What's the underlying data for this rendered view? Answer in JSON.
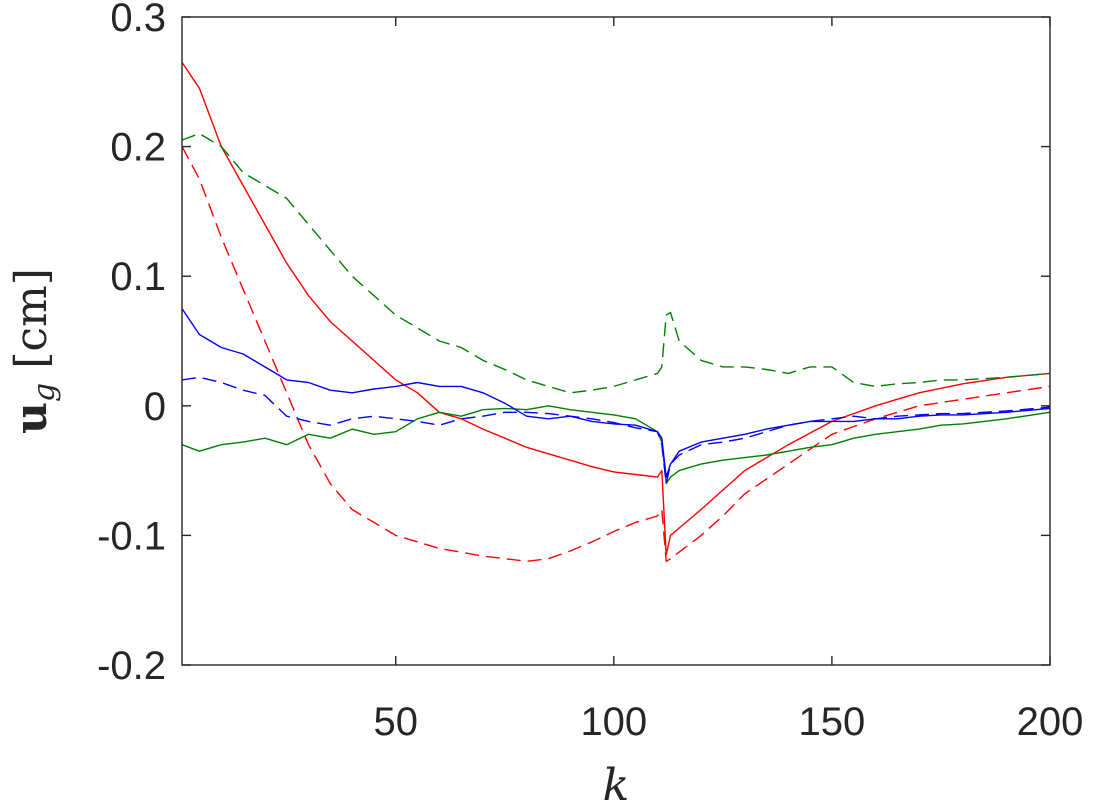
{
  "chart_data": {
    "type": "line",
    "title": "",
    "xlabel": "k",
    "ylabel_main": "u",
    "ylabel_sub": "g",
    "ylabel_unit": "[cm]",
    "xlim": [
      1,
      200
    ],
    "ylim": [
      -0.2,
      0.3
    ],
    "x_ticks": [
      50,
      100,
      150,
      200
    ],
    "x_tick_labels": [
      "50",
      "100",
      "150",
      "200"
    ],
    "y_ticks": [
      -0.2,
      -0.1,
      0,
      0.1,
      0.2,
      0.3
    ],
    "y_tick_labels": [
      "-0.2",
      "-0.1",
      "0",
      "0.1",
      "0.2",
      "0.3"
    ],
    "grid": false,
    "box": true,
    "series": [
      {
        "color": "#ff0000",
        "dash": "solid",
        "points": [
          [
            1,
            0.265
          ],
          [
            5,
            0.245
          ],
          [
            10,
            0.2
          ],
          [
            15,
            0.17
          ],
          [
            20,
            0.14
          ],
          [
            25,
            0.11
          ],
          [
            30,
            0.085
          ],
          [
            35,
            0.065
          ],
          [
            40,
            0.05
          ],
          [
            45,
            0.035
          ],
          [
            50,
            0.02
          ],
          [
            55,
            0.01
          ],
          [
            60,
            -0.005
          ],
          [
            65,
            -0.01
          ],
          [
            70,
            -0.018
          ],
          [
            75,
            -0.025
          ],
          [
            80,
            -0.032
          ],
          [
            85,
            -0.037
          ],
          [
            90,
            -0.042
          ],
          [
            95,
            -0.047
          ],
          [
            100,
            -0.051
          ],
          [
            105,
            -0.053
          ],
          [
            110,
            -0.055
          ],
          [
            111,
            -0.05
          ],
          [
            112,
            -0.115
          ],
          [
            113,
            -0.1
          ],
          [
            120,
            -0.08
          ],
          [
            125,
            -0.065
          ],
          [
            130,
            -0.05
          ],
          [
            140,
            -0.03
          ],
          [
            150,
            -0.012
          ],
          [
            160,
            0
          ],
          [
            170,
            0.01
          ],
          [
            180,
            0.017
          ],
          [
            190,
            0.022
          ],
          [
            200,
            0.025
          ]
        ]
      },
      {
        "color": "#ff0000",
        "dash": "dashed",
        "points": [
          [
            1,
            0.2
          ],
          [
            5,
            0.175
          ],
          [
            10,
            0.13
          ],
          [
            15,
            0.09
          ],
          [
            20,
            0.05
          ],
          [
            25,
            0.01
          ],
          [
            30,
            -0.03
          ],
          [
            35,
            -0.06
          ],
          [
            40,
            -0.08
          ],
          [
            45,
            -0.09
          ],
          [
            50,
            -0.1
          ],
          [
            55,
            -0.105
          ],
          [
            60,
            -0.11
          ],
          [
            65,
            -0.113
          ],
          [
            70,
            -0.116
          ],
          [
            75,
            -0.118
          ],
          [
            80,
            -0.12
          ],
          [
            85,
            -0.118
          ],
          [
            90,
            -0.112
          ],
          [
            95,
            -0.105
          ],
          [
            100,
            -0.097
          ],
          [
            105,
            -0.09
          ],
          [
            110,
            -0.085
          ],
          [
            111,
            -0.08
          ],
          [
            112,
            -0.12
          ],
          [
            113,
            -0.118
          ],
          [
            120,
            -0.1
          ],
          [
            125,
            -0.085
          ],
          [
            130,
            -0.068
          ],
          [
            140,
            -0.045
          ],
          [
            150,
            -0.022
          ],
          [
            160,
            -0.01
          ],
          [
            170,
            0
          ],
          [
            180,
            0.005
          ],
          [
            190,
            0.01
          ],
          [
            200,
            0.015
          ]
        ]
      },
      {
        "color": "#008000",
        "dash": "solid",
        "points": [
          [
            1,
            -0.03
          ],
          [
            5,
            -0.035
          ],
          [
            10,
            -0.03
          ],
          [
            15,
            -0.028
          ],
          [
            20,
            -0.025
          ],
          [
            25,
            -0.03
          ],
          [
            30,
            -0.022
          ],
          [
            35,
            -0.025
          ],
          [
            40,
            -0.018
          ],
          [
            45,
            -0.022
          ],
          [
            50,
            -0.02
          ],
          [
            55,
            -0.01
          ],
          [
            60,
            -0.005
          ],
          [
            65,
            -0.008
          ],
          [
            70,
            -0.003
          ],
          [
            75,
            -0.002
          ],
          [
            80,
            -0.003
          ],
          [
            85,
            0
          ],
          [
            90,
            -0.003
          ],
          [
            95,
            -0.005
          ],
          [
            100,
            -0.007
          ],
          [
            105,
            -0.01
          ],
          [
            110,
            -0.02
          ],
          [
            111,
            -0.028
          ],
          [
            112,
            -0.06
          ],
          [
            113,
            -0.055
          ],
          [
            115,
            -0.05
          ],
          [
            120,
            -0.045
          ],
          [
            125,
            -0.042
          ],
          [
            130,
            -0.04
          ],
          [
            135,
            -0.038
          ],
          [
            140,
            -0.035
          ],
          [
            145,
            -0.032
          ],
          [
            150,
            -0.03
          ],
          [
            155,
            -0.025
          ],
          [
            160,
            -0.022
          ],
          [
            165,
            -0.02
          ],
          [
            170,
            -0.018
          ],
          [
            175,
            -0.015
          ],
          [
            180,
            -0.014
          ],
          [
            190,
            -0.01
          ],
          [
            200,
            -0.005
          ]
        ]
      },
      {
        "color": "#008000",
        "dash": "dashed",
        "points": [
          [
            1,
            0.205
          ],
          [
            5,
            0.21
          ],
          [
            10,
            0.2
          ],
          [
            15,
            0.18
          ],
          [
            20,
            0.17
          ],
          [
            25,
            0.16
          ],
          [
            30,
            0.14
          ],
          [
            35,
            0.12
          ],
          [
            40,
            0.1
          ],
          [
            45,
            0.085
          ],
          [
            50,
            0.07
          ],
          [
            55,
            0.06
          ],
          [
            60,
            0.05
          ],
          [
            65,
            0.045
          ],
          [
            70,
            0.035
          ],
          [
            75,
            0.028
          ],
          [
            80,
            0.02
          ],
          [
            85,
            0.015
          ],
          [
            90,
            0.01
          ],
          [
            95,
            0.012
          ],
          [
            100,
            0.015
          ],
          [
            105,
            0.02
          ],
          [
            110,
            0.025
          ],
          [
            111,
            0.03
          ],
          [
            112,
            0.07
          ],
          [
            113,
            0.072
          ],
          [
            115,
            0.05
          ],
          [
            120,
            0.035
          ],
          [
            125,
            0.03
          ],
          [
            130,
            0.03
          ],
          [
            135,
            0.028
          ],
          [
            140,
            0.025
          ],
          [
            145,
            0.03
          ],
          [
            150,
            0.03
          ],
          [
            155,
            0.018
          ],
          [
            160,
            0.015
          ],
          [
            165,
            0.017
          ],
          [
            170,
            0.018
          ],
          [
            175,
            0.02
          ],
          [
            180,
            0.02
          ],
          [
            190,
            0.022
          ],
          [
            200,
            0.025
          ]
        ]
      },
      {
        "color": "#0000ff",
        "dash": "solid",
        "points": [
          [
            1,
            0.075
          ],
          [
            5,
            0.055
          ],
          [
            10,
            0.045
          ],
          [
            15,
            0.04
          ],
          [
            20,
            0.03
          ],
          [
            25,
            0.02
          ],
          [
            30,
            0.018
          ],
          [
            35,
            0.012
          ],
          [
            40,
            0.01
          ],
          [
            45,
            0.013
          ],
          [
            50,
            0.015
          ],
          [
            55,
            0.018
          ],
          [
            60,
            0.015
          ],
          [
            65,
            0.015
          ],
          [
            70,
            0.01
          ],
          [
            75,
            0.002
          ],
          [
            80,
            -0.008
          ],
          [
            85,
            -0.01
          ],
          [
            90,
            -0.008
          ],
          [
            95,
            -0.012
          ],
          [
            100,
            -0.014
          ],
          [
            105,
            -0.015
          ],
          [
            110,
            -0.02
          ],
          [
            111,
            -0.025
          ],
          [
            112,
            -0.055
          ],
          [
            113,
            -0.045
          ],
          [
            115,
            -0.035
          ],
          [
            120,
            -0.028
          ],
          [
            125,
            -0.025
          ],
          [
            130,
            -0.022
          ],
          [
            135,
            -0.018
          ],
          [
            140,
            -0.015
          ],
          [
            145,
            -0.012
          ],
          [
            150,
            -0.012
          ],
          [
            155,
            -0.012
          ],
          [
            160,
            -0.01
          ],
          [
            165,
            -0.01
          ],
          [
            170,
            -0.008
          ],
          [
            175,
            -0.007
          ],
          [
            180,
            -0.007
          ],
          [
            190,
            -0.005
          ],
          [
            200,
            -0.002
          ]
        ]
      },
      {
        "color": "#0000ff",
        "dash": "dashed",
        "points": [
          [
            1,
            0.02
          ],
          [
            5,
            0.022
          ],
          [
            10,
            0.018
          ],
          [
            15,
            0.012
          ],
          [
            20,
            0.008
          ],
          [
            25,
            -0.008
          ],
          [
            30,
            -0.012
          ],
          [
            35,
            -0.015
          ],
          [
            40,
            -0.01
          ],
          [
            45,
            -0.008
          ],
          [
            50,
            -0.01
          ],
          [
            55,
            -0.012
          ],
          [
            60,
            -0.015
          ],
          [
            65,
            -0.01
          ],
          [
            70,
            -0.008
          ],
          [
            75,
            -0.005
          ],
          [
            80,
            -0.005
          ],
          [
            85,
            -0.006
          ],
          [
            90,
            -0.008
          ],
          [
            95,
            -0.01
          ],
          [
            100,
            -0.013
          ],
          [
            105,
            -0.017
          ],
          [
            110,
            -0.02
          ],
          [
            111,
            -0.03
          ],
          [
            112,
            -0.06
          ],
          [
            113,
            -0.045
          ],
          [
            115,
            -0.038
          ],
          [
            120,
            -0.03
          ],
          [
            125,
            -0.028
          ],
          [
            130,
            -0.025
          ],
          [
            135,
            -0.02
          ],
          [
            140,
            -0.015
          ],
          [
            145,
            -0.012
          ],
          [
            150,
            -0.01
          ],
          [
            155,
            -0.008
          ],
          [
            160,
            -0.01
          ],
          [
            165,
            -0.008
          ],
          [
            170,
            -0.007
          ],
          [
            175,
            -0.006
          ],
          [
            180,
            -0.006
          ],
          [
            190,
            -0.004
          ],
          [
            200,
            -0.001
          ]
        ]
      }
    ]
  }
}
